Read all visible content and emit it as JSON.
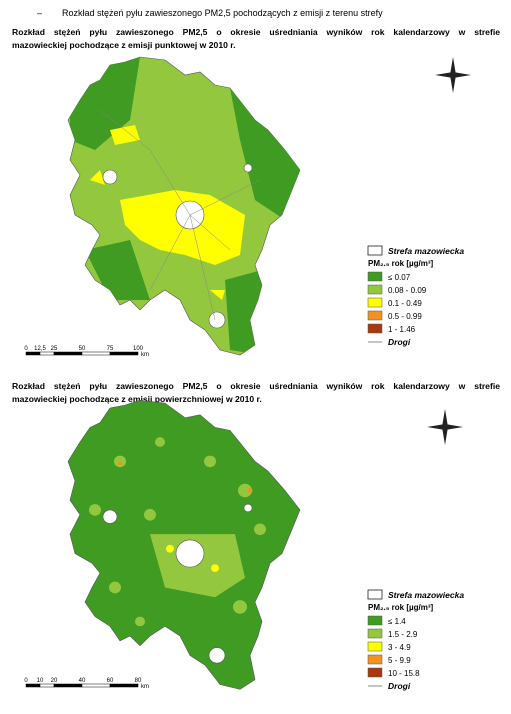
{
  "header": {
    "bullet": "–",
    "text": "Rozkład stężeń pyłu zawieszonego PM2,5 pochodzących z emisji z terenu strefy"
  },
  "maps": [
    {
      "title_lines": [
        "Rozkład stężeń pyłu zawieszonego PM2,5 o okresie uśredniania wyników rok kalendarzowy w strefie",
        "mazowieckiej pochodzące z emisji punktowej w 2010 r."
      ],
      "legend": {
        "zone": "Strefa mazowiecka",
        "title": "PM₂.₅ rok [µg/m³]",
        "items": [
          {
            "label": "≤ 0.07",
            "color": "#3f9b22"
          },
          {
            "label": "0.08 - 0.09",
            "color": "#93c83e"
          },
          {
            "label": "0.1 - 0.49",
            "color": "#ffff00"
          },
          {
            "label": "0.5 - 0.99",
            "color": "#f39221"
          },
          {
            "label": "1 - 1.46",
            "color": "#a8380f"
          }
        ],
        "roads": "Drogi"
      },
      "scale": [
        "0",
        "12,5",
        "25",
        "50",
        "75",
        "100"
      ],
      "scale_unit": "km"
    },
    {
      "title_lines": [
        "Rozkład stężeń pyłu zawieszonego PM2,5 o okresie uśredniania wyników rok kalendarzowy w strefie",
        "mazowieckiej pochodzące z emisji powierzchniowej w 2010 r."
      ],
      "legend": {
        "zone": "Strefa mazowiecka",
        "title": "PM₂.₅ rok [µg/m³]",
        "items": [
          {
            "label": "≤ 1.4",
            "color": "#3f9b22"
          },
          {
            "label": "1.5 - 2.9",
            "color": "#93c83e"
          },
          {
            "label": "3 - 4.9",
            "color": "#ffff00"
          },
          {
            "label": "5 - 9.9",
            "color": "#f39221"
          },
          {
            "label": "10 - 15.8",
            "color": "#a8380f"
          }
        ],
        "roads": "Drogi"
      },
      "scale": [
        "0",
        "10",
        "20",
        "40",
        "60",
        "80"
      ],
      "scale_unit": "km"
    }
  ]
}
